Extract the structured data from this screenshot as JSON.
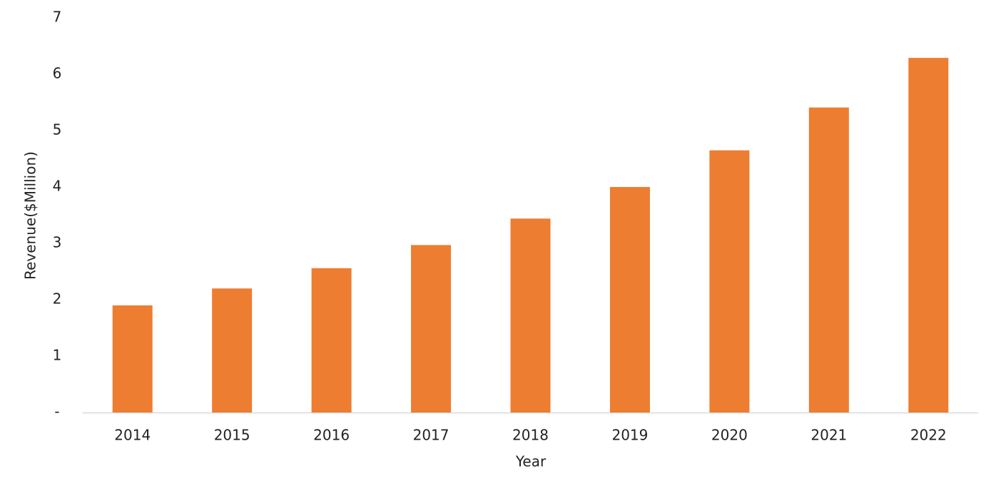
{
  "chart_data": {
    "type": "bar",
    "x_label": "Year",
    "y_label": "Revenue($Million)",
    "categories": [
      "2014",
      "2015",
      "2016",
      "2017",
      "2018",
      "2019",
      "2020",
      "2021",
      "2022"
    ],
    "values": [
      1.9,
      2.2,
      2.56,
      2.97,
      3.44,
      4.0,
      4.65,
      5.41,
      6.29
    ],
    "color": "#ED7D31",
    "ylim": [
      0,
      7
    ],
    "yticks": [
      {
        "value": 0,
        "label": "-"
      },
      1,
      2,
      3,
      4,
      5,
      6,
      7
    ],
    "grid": false
  }
}
